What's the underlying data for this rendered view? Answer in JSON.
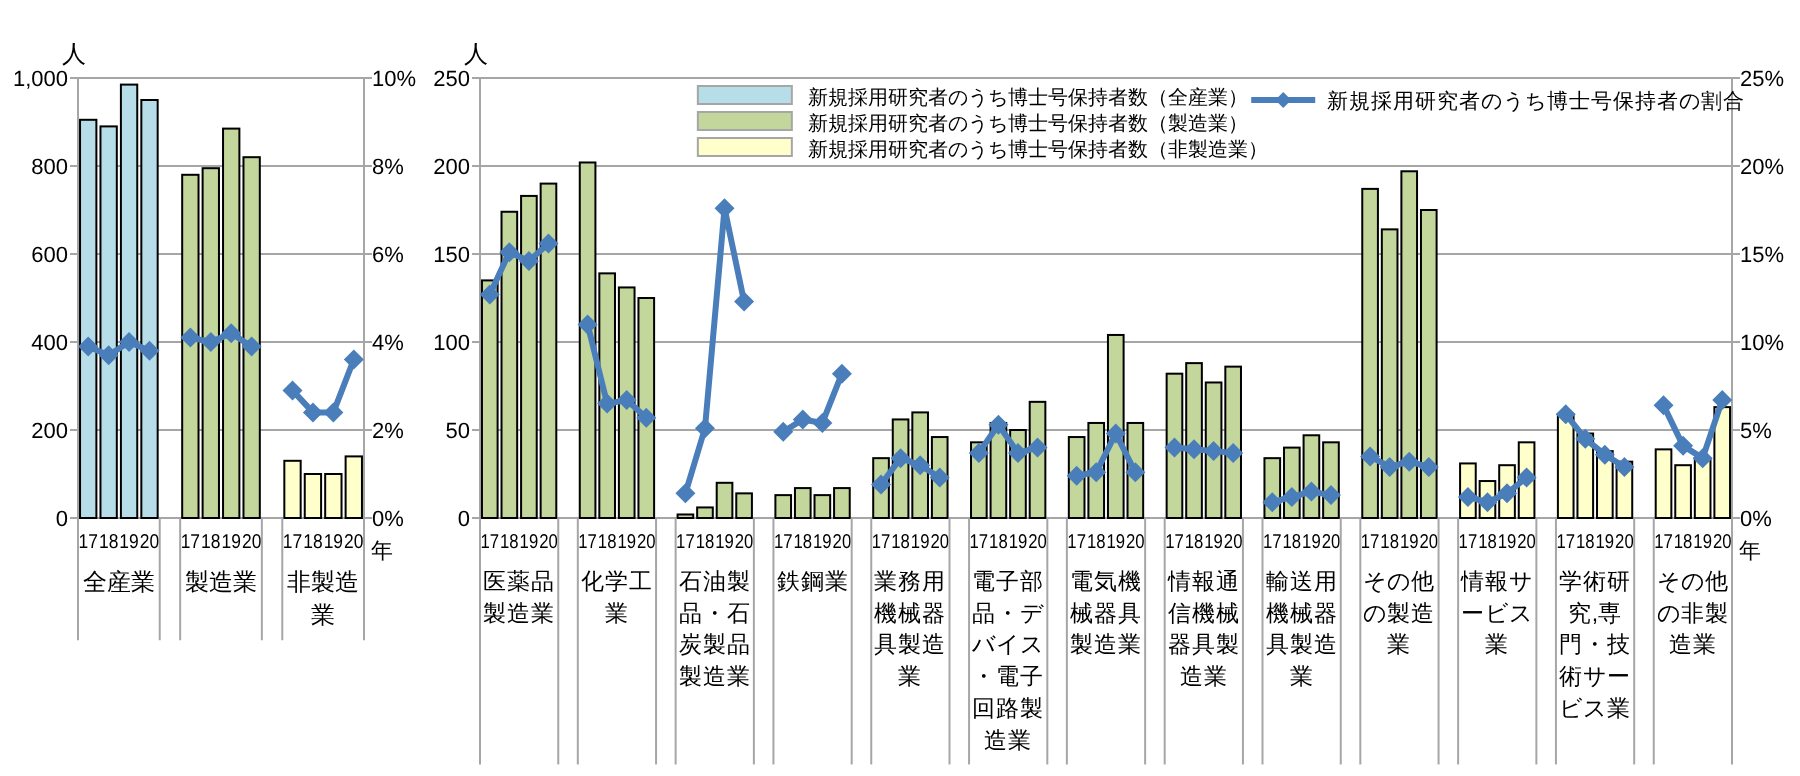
{
  "chart_data": [
    {
      "type": "bar",
      "categories": [
        "17",
        "18",
        "19",
        "20",
        null,
        "17",
        "18",
        "19",
        "20",
        null,
        "17",
        "18",
        "19",
        "20"
      ],
      "series": [
        {
          "color": "#b7dee8",
          "values": [
            905,
            890,
            985,
            950,
            null,
            null,
            null,
            null,
            null,
            null,
            null,
            null,
            null,
            null
          ]
        },
        {
          "color": "#c3d69b",
          "values": [
            null,
            null,
            null,
            null,
            null,
            780,
            795,
            885,
            820,
            null,
            null,
            null,
            null,
            null
          ]
        },
        {
          "color": "#ffffcc",
          "values": [
            null,
            null,
            null,
            null,
            null,
            null,
            null,
            null,
            null,
            null,
            130,
            100,
            100,
            140
          ]
        },
        {
          "type": "line",
          "axis": "y2",
          "color": "#4a7ebb",
          "values": [
            3.9,
            3.7,
            4.0,
            3.8,
            null,
            4.1,
            4.0,
            4.2,
            3.9,
            null,
            2.9,
            2.4,
            2.4,
            3.6
          ]
        }
      ],
      "ylim": [
        0,
        1000
      ],
      "yticks": [
        0,
        200,
        400,
        600,
        800,
        {
          "value": 1000,
          "label": "1,000"
        }
      ],
      "y2lim": [
        0,
        10
      ],
      "y2ticks": [
        {
          "value": 0,
          "label": "0%"
        },
        {
          "value": 2,
          "label": "2%"
        },
        {
          "value": 4,
          "label": "4%"
        },
        {
          "value": 6,
          "label": "6%"
        },
        {
          "value": 8,
          "label": "8%"
        },
        {
          "value": 10,
          "label": "10%"
        }
      ],
      "ylabel": "人",
      "xlabel": "年",
      "grid": "y",
      "marker": "diamond",
      "annotations": [
        "全産業",
        "製造業",
        "非製造業"
      ]
    },
    {
      "type": "bar",
      "categories": [
        "17",
        "18",
        "19",
        "20",
        null,
        "17",
        "18",
        "19",
        "20",
        null,
        "17",
        "18",
        "19",
        "20",
        null,
        "17",
        "18",
        "19",
        "20",
        null,
        "17",
        "18",
        "19",
        "20",
        null,
        "17",
        "18",
        "19",
        "20",
        null,
        "17",
        "18",
        "19",
        "20",
        null,
        "17",
        "18",
        "19",
        "20",
        null,
        "17",
        "18",
        "19",
        "20",
        null,
        "17",
        "18",
        "19",
        "20",
        null,
        "17",
        "18",
        "19",
        "20",
        null,
        "17",
        "18",
        "19",
        "20",
        null,
        "17",
        "18",
        "19",
        "20"
      ],
      "series": [
        {
          "name": "新規採用研究者のうち博士号保持者数（全産業）",
          "color": "#b7dee8",
          "values": [
            null,
            null,
            null,
            null,
            null,
            null,
            null,
            null,
            null,
            null,
            null,
            null,
            null,
            null,
            null,
            null,
            null,
            null,
            null,
            null,
            null,
            null,
            null,
            null,
            null,
            null,
            null,
            null,
            null,
            null,
            null,
            null,
            null,
            null,
            null,
            null,
            null,
            null,
            null,
            null,
            null,
            null,
            null,
            null,
            null,
            null,
            null,
            null,
            null,
            null,
            null,
            null,
            null,
            null,
            null,
            null,
            null,
            null,
            null,
            null,
            null,
            null,
            null,
            null
          ]
        },
        {
          "name": "新規採用研究者のうち博士号保持者数（製造業）",
          "color": "#c3d69b",
          "values": [
            135,
            174,
            183,
            190,
            null,
            202,
            139,
            131,
            125,
            null,
            2,
            6,
            20,
            14,
            null,
            13,
            17,
            13,
            17,
            null,
            34,
            56,
            60,
            46,
            null,
            43,
            54,
            50,
            66,
            null,
            46,
            54,
            104,
            54,
            null,
            82,
            88,
            77,
            86,
            null,
            34,
            40,
            47,
            43,
            null,
            187,
            164,
            197,
            175,
            null,
            null,
            null,
            null,
            null,
            null,
            null,
            null,
            null,
            null,
            null,
            null,
            null,
            null,
            null
          ]
        },
        {
          "name": "新規採用研究者のうち博士号保持者数（非製造業）",
          "color": "#ffffcc",
          "values": [
            null,
            null,
            null,
            null,
            null,
            null,
            null,
            null,
            null,
            null,
            null,
            null,
            null,
            null,
            null,
            null,
            null,
            null,
            null,
            null,
            null,
            null,
            null,
            null,
            null,
            null,
            null,
            null,
            null,
            null,
            null,
            null,
            null,
            null,
            null,
            null,
            null,
            null,
            null,
            null,
            null,
            null,
            null,
            null,
            null,
            null,
            null,
            null,
            null,
            null,
            31,
            21,
            30,
            43,
            null,
            59,
            48,
            38,
            32,
            null,
            39,
            30,
            34,
            63
          ]
        },
        {
          "name": "新規採用研究者のうち博士号保持者の割合",
          "type": "line",
          "axis": "y2",
          "color": "#4a7ebb",
          "values": [
            12.7,
            15.1,
            14.6,
            15.6,
            null,
            11.0,
            6.5,
            6.7,
            5.7,
            null,
            1.4,
            5.1,
            17.6,
            12.3,
            null,
            4.9,
            5.6,
            5.4,
            8.2,
            null,
            1.9,
            3.4,
            3.0,
            2.3,
            null,
            3.7,
            5.3,
            3.7,
            4.0,
            null,
            2.4,
            2.6,
            4.8,
            2.6,
            null,
            4.0,
            3.9,
            3.8,
            3.7,
            null,
            0.9,
            1.2,
            1.5,
            1.3,
            null,
            3.5,
            2.9,
            3.2,
            2.9,
            null,
            1.2,
            0.9,
            1.4,
            2.3,
            null,
            5.9,
            4.5,
            3.6,
            2.9,
            null,
            6.4,
            4.1,
            3.4,
            6.7
          ]
        }
      ],
      "ylim": [
        0,
        250
      ],
      "yticks": [
        0,
        50,
        100,
        150,
        200,
        250
      ],
      "y2lim": [
        0,
        25
      ],
      "y2ticks": [
        {
          "value": 0,
          "label": "0%"
        },
        {
          "value": 5,
          "label": "5%"
        },
        {
          "value": 10,
          "label": "10%"
        },
        {
          "value": 15,
          "label": "15%"
        },
        {
          "value": 20,
          "label": "20%"
        },
        {
          "value": 25,
          "label": "25%"
        }
      ],
      "ylabel": "人",
      "xlabel": "年",
      "grid": "y",
      "marker": "diamond",
      "legend": "top",
      "annotations": [
        "医薬品製造業",
        "化学工業",
        "石油製品・石炭製品製造業",
        "鉄鋼業",
        "業務用機械器具製造業",
        "電子部品・デバイス・電子回路製造業",
        "電気機械器具製造業",
        "情報通信機械器具製造業",
        "輸送用機械器具製造業",
        "その他の製造業",
        "情報サービス業",
        "学術研究,専門・技術サービス業",
        "その他の非製造業"
      ]
    }
  ]
}
